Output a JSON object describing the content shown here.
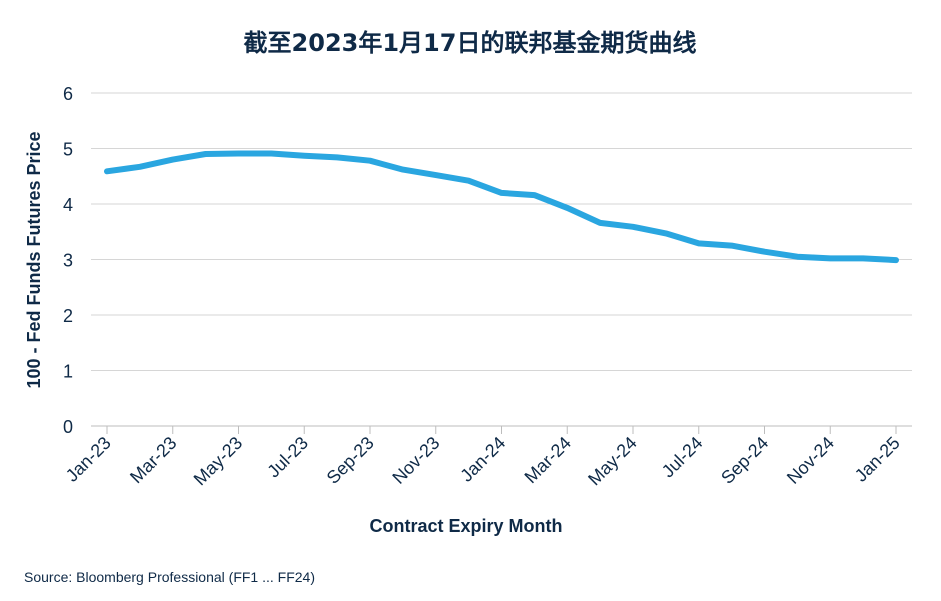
{
  "chart_data": {
    "type": "line",
    "title": "截至2023年1月17日的联邦基金期货曲线",
    "xlabel": "Contract Expiry Month",
    "ylabel": "100 - Fed Funds Futures Price",
    "ylim": [
      0,
      6
    ],
    "yticks": [
      0,
      1,
      2,
      3,
      4,
      5,
      6
    ],
    "x": [
      "Jan-23",
      "Feb-23",
      "Mar-23",
      "Apr-23",
      "May-23",
      "Jun-23",
      "Jul-23",
      "Aug-23",
      "Sep-23",
      "Oct-23",
      "Nov-23",
      "Dec-23",
      "Jan-24",
      "Feb-24",
      "Mar-24",
      "Apr-24",
      "May-24",
      "Jun-24",
      "Jul-24",
      "Aug-24",
      "Sep-24",
      "Oct-24",
      "Nov-24",
      "Dec-24",
      "Jan-25"
    ],
    "xticks_shown": [
      "Jan-23",
      "Mar-23",
      "May-23",
      "Jul-23",
      "Sep-23",
      "Nov-23",
      "Jan-24",
      "Mar-24",
      "May-24",
      "Jul-24",
      "Sep-24",
      "Nov-24",
      "Jan-25"
    ],
    "series": [
      {
        "color": "#2aa6e0",
        "values": [
          4.59,
          4.67,
          4.8,
          4.9,
          4.91,
          4.91,
          4.87,
          4.84,
          4.78,
          4.62,
          4.52,
          4.42,
          4.2,
          4.16,
          3.93,
          3.66,
          3.59,
          3.47,
          3.29,
          3.25,
          3.14,
          3.05,
          3.02,
          3.02,
          2.99
        ]
      }
    ],
    "grid": true
  },
  "source": "Source: Bloomberg Professional (FF1 ... FF24)"
}
